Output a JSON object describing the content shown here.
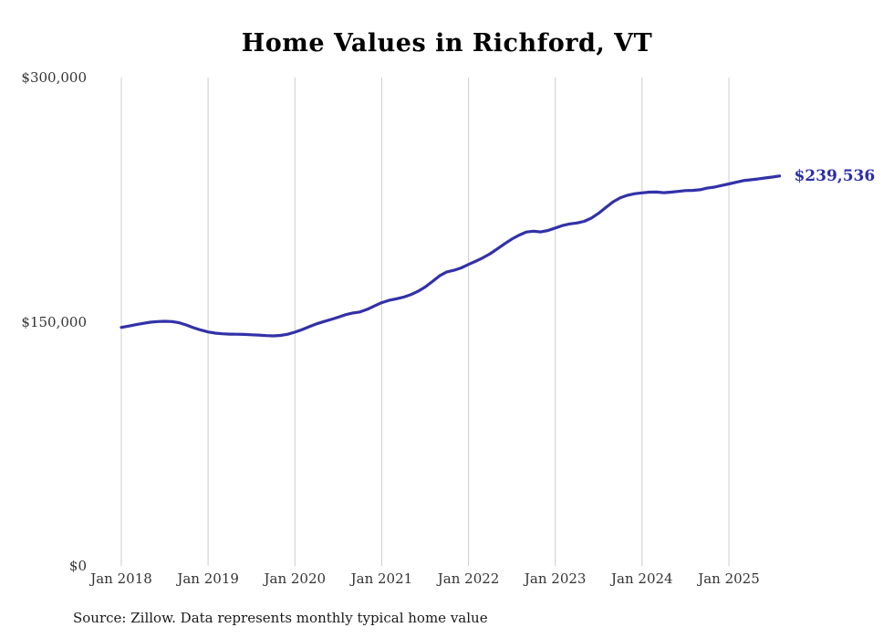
{
  "source": "Source: Zillow. Data represents monthly typical home value",
  "chart_data": {
    "type": "line",
    "title": "Home Values in Richford, VT",
    "xlabel": "",
    "ylabel": "",
    "ylim": [
      0,
      300000
    ],
    "grid": "vertical-only",
    "legend": "none",
    "line_color": "#3231a8",
    "grid_color": "#cccccc",
    "tick_color": "#333333",
    "end_label": "$239,536",
    "end_label_color": "#2d2da8",
    "y_ticks": [
      {
        "value": 0,
        "label": "$0"
      },
      {
        "value": 150000,
        "label": "$150,000"
      },
      {
        "value": 300000,
        "label": "$300,000"
      }
    ],
    "x_ticks": [
      "Jan 2018",
      "Jan 2019",
      "Jan 2020",
      "Jan 2021",
      "Jan 2022",
      "Jan 2023",
      "Jan 2024",
      "Jan 2025"
    ],
    "x_monthly": "Jan 2018 through Aug 2025",
    "values": [
      146500,
      147300,
      148200,
      149000,
      149700,
      150100,
      150300,
      150100,
      149400,
      148000,
      146300,
      144900,
      143700,
      143000,
      142600,
      142400,
      142300,
      142200,
      142000,
      141800,
      141500,
      141300,
      141600,
      142300,
      143600,
      145200,
      147000,
      148700,
      150100,
      151400,
      152800,
      154300,
      155400,
      156000,
      157600,
      159700,
      161700,
      163100,
      164100,
      165100,
      166600,
      168700,
      171300,
      174700,
      178200,
      180600,
      181600,
      183100,
      185200,
      187200,
      189300,
      191800,
      194800,
      197900,
      200800,
      203200,
      205100,
      205600,
      205200,
      206100,
      207600,
      209100,
      210100,
      210700,
      211700,
      213700,
      216700,
      220200,
      223700,
      226200,
      227700,
      228700,
      229200,
      229600,
      229700,
      229300,
      229600,
      230100,
      230600,
      230700,
      231100,
      232100,
      232700,
      233700,
      234700,
      235700,
      236700,
      237200,
      237700,
      238300,
      238900,
      239536
    ]
  }
}
